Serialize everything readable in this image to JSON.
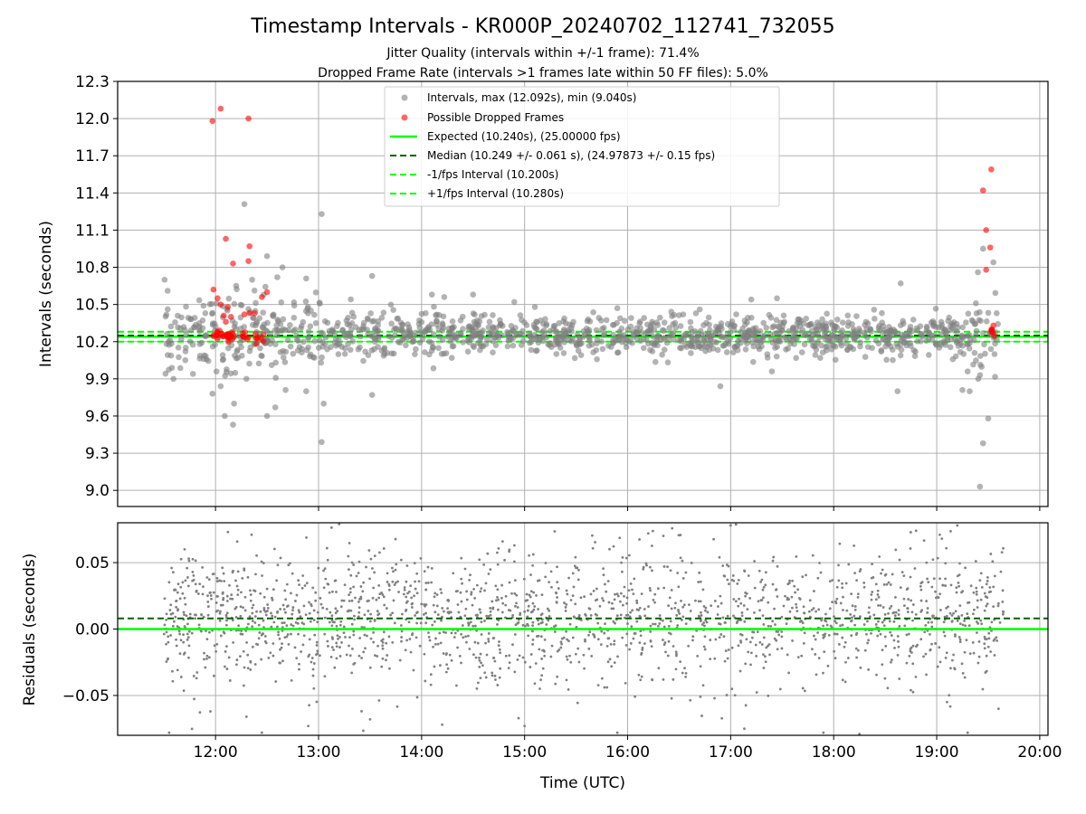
{
  "title": "Timestamp Intervals - KR000P_20240702_112741_732055",
  "subtitle_lines": [
    "Jitter Quality (intervals within +/-1 frame): 71.4%",
    "Dropped Frame Rate (intervals >1 frames late within 50 FF files): 5.0%"
  ],
  "colors": {
    "intervals": "#808080",
    "dropped": "#ff0000",
    "expected": "#00ff00",
    "median": "#006400",
    "fps_band": "#00ff00",
    "grid": "#b0b0b0"
  },
  "chart_data": [
    {
      "type": "scatter",
      "panel": "intervals",
      "ylabel": "Intervals (seconds)",
      "xlim": [
        11.05,
        20.08
      ],
      "ylim": [
        8.87,
        12.3
      ],
      "yticks": [
        9.0,
        9.3,
        9.6,
        9.9,
        10.2,
        10.5,
        10.8,
        11.1,
        11.4,
        11.7,
        12.0,
        12.3
      ],
      "ytick_labels": [
        "9.0",
        "9.3",
        "9.6",
        "9.9",
        "10.2",
        "10.5",
        "10.8",
        "11.1",
        "11.4",
        "11.7",
        "12.0",
        "12.3"
      ],
      "grid": true,
      "legend_position": "top-center",
      "legend": [
        "Intervals, max (12.092s), min (9.040s)",
        "Possible Dropped Frames",
        "Expected (10.240s), (25.00000 fps)",
        "Median (10.249 +/- 0.061 s), (24.97873 +/- 0.15 fps)",
        "-1/fps Interval (10.200s)",
        "+1/fps Interval (10.280s)"
      ],
      "lines": {
        "expected": 10.24,
        "median": 10.249,
        "minus_fps": 10.2,
        "plus_fps": 10.28
      },
      "series": [
        {
          "name": "Intervals, max (12.092s), min (9.040s)",
          "points": [
            [
              11.97,
              9.78
            ],
            [
              12.05,
              9.84
            ],
            [
              12.09,
              9.6
            ],
            [
              12.17,
              9.53
            ],
            [
              12.18,
              9.7
            ],
            [
              12.3,
              9.9
            ],
            [
              12.5,
              9.6
            ],
            [
              12.58,
              9.67
            ],
            [
              12.68,
              9.81
            ],
            [
              12.88,
              9.8
            ],
            [
              13.03,
              9.39
            ],
            [
              13.05,
              9.7
            ],
            [
              13.52,
              9.77
            ],
            [
              12.2,
              10.65
            ],
            [
              12.28,
              11.31
            ],
            [
              12.5,
              10.89
            ],
            [
              12.6,
              10.72
            ],
            [
              12.65,
              10.8
            ],
            [
              12.88,
              10.71
            ],
            [
              13.03,
              11.23
            ],
            [
              13.52,
              10.73
            ],
            [
              14.1,
              10.58
            ],
            [
              14.22,
              10.56
            ],
            [
              14.5,
              10.58
            ],
            [
              14.9,
              10.52
            ],
            [
              15.1,
              10.48
            ],
            [
              15.9,
              10.47
            ],
            [
              16.7,
              10.46
            ],
            [
              17.2,
              10.54
            ],
            [
              17.45,
              10.55
            ],
            [
              18.65,
              10.67
            ],
            [
              18.62,
              9.8
            ],
            [
              16.9,
              9.84
            ],
            [
              17.4,
              9.96
            ],
            [
              19.25,
              9.81
            ],
            [
              19.32,
              9.8
            ],
            [
              19.42,
              9.03
            ],
            [
              19.45,
              9.38
            ],
            [
              19.5,
              9.58
            ],
            [
              19.38,
              10.51
            ],
            [
              19.4,
              10.76
            ],
            [
              19.45,
              10.95
            ],
            [
              19.55,
              10.84
            ],
            [
              19.3,
              9.96
            ],
            [
              19.42,
              9.93
            ]
          ]
        },
        {
          "name": "Possible Dropped Frames",
          "points": [
            [
              11.97,
              11.98
            ],
            [
              12.05,
              12.08
            ],
            [
              12.32,
              12.0
            ],
            [
              12.1,
              11.03
            ],
            [
              12.33,
              10.97
            ],
            [
              12.17,
              10.83
            ],
            [
              12.32,
              10.85
            ],
            [
              12.5,
              10.6
            ],
            [
              12.45,
              10.56
            ],
            [
              11.98,
              10.62
            ],
            [
              12.02,
              10.55
            ],
            [
              12.05,
              10.5
            ],
            [
              12.08,
              10.41
            ],
            [
              12.1,
              10.36
            ],
            [
              12.12,
              10.48
            ],
            [
              12.15,
              10.4
            ],
            [
              12.28,
              10.42
            ],
            [
              12.33,
              10.43
            ],
            [
              12.38,
              10.43
            ],
            [
              19.45,
              11.42
            ],
            [
              19.48,
              11.1
            ],
            [
              19.52,
              10.96
            ],
            [
              19.53,
              11.59
            ],
            [
              19.48,
              10.78
            ],
            [
              19.55,
              10.33
            ]
          ]
        }
      ]
    },
    {
      "type": "scatter",
      "panel": "residuals",
      "ylabel": "Residuals (seconds)",
      "xlabel": "Time (UTC)",
      "xlim": [
        11.05,
        20.08
      ],
      "ylim": [
        -0.08,
        0.08
      ],
      "yticks": [
        -0.05,
        0.0,
        0.05
      ],
      "ytick_labels": [
        "−0.05",
        "0.00",
        "0.05"
      ],
      "xticks": [
        12,
        13,
        14,
        15,
        16,
        17,
        18,
        19,
        20
      ],
      "xtick_labels": [
        "12:00",
        "13:00",
        "14:00",
        "15:00",
        "16:00",
        "17:00",
        "18:00",
        "19:00",
        "20:00"
      ],
      "grid": true,
      "lines": {
        "zero": 0.0,
        "median": 0.008
      },
      "series": [
        {
          "name": "Residuals",
          "points": [
            [
              11.55,
              -0.078
            ],
            [
              12.12,
              0.073
            ],
            [
              12.35,
              0.071
            ],
            [
              12.45,
              -0.078
            ],
            [
              12.9,
              -0.073
            ],
            [
              13.2,
              0.079
            ],
            [
              13.5,
              -0.068
            ],
            [
              14.2,
              -0.072
            ],
            [
              15.0,
              -0.073
            ],
            [
              15.9,
              -0.078
            ],
            [
              16.2,
              0.072
            ],
            [
              17.0,
              0.078
            ],
            [
              17.9,
              -0.078
            ],
            [
              18.25,
              -0.079
            ],
            [
              18.8,
              0.074
            ],
            [
              19.2,
              0.078
            ],
            [
              19.3,
              -0.078
            ],
            [
              19.6,
              -0.06
            ],
            [
              11.7,
              0.06
            ],
            [
              11.95,
              -0.062
            ],
            [
              12.3,
              -0.066
            ],
            [
              19.05,
              0.068
            ],
            [
              19.1,
              -0.055
            ]
          ]
        }
      ]
    }
  ]
}
